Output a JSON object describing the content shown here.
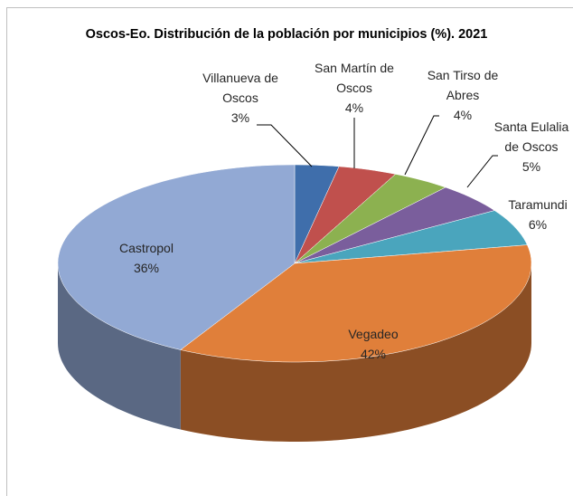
{
  "chart_data": {
    "type": "pie",
    "title": "Oscos-Eo. Distribución de la población por municipios (%). 2021",
    "categories": [
      "Villanueva de Oscos",
      "San Martín de Oscos",
      "San Tirso de Abres",
      "Santa Eulalia de Oscos",
      "Taramundi",
      "Castropol",
      "Vegadeo"
    ],
    "values": [
      3,
      4,
      4,
      5,
      6,
      36,
      42
    ],
    "value_labels": [
      "3%",
      "4%",
      "4%",
      "5%",
      "6%",
      "36%",
      "42%"
    ],
    "colors": [
      "#3f6eab",
      "#c0504d",
      "#8cb150",
      "#7a5e9c",
      "#4aa5bd",
      "#e07f3a",
      "#92a9d4"
    ]
  }
}
